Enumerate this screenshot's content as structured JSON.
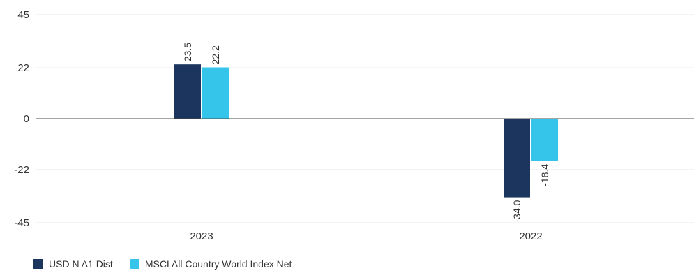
{
  "chart_data": {
    "type": "bar",
    "categories": [
      "2023",
      "2022"
    ],
    "series": [
      {
        "name": "USD N A1 Dist",
        "color": "#1c355e",
        "values": [
          23.5,
          -34.0
        ],
        "labels": [
          "23.5",
          "-34.0"
        ]
      },
      {
        "name": "MSCI All Country World Index Net",
        "color": "#35c4ea",
        "values": [
          22.2,
          -18.4
        ],
        "labels": [
          "22.2",
          "-18.4"
        ]
      }
    ],
    "yticks": [
      45,
      22,
      0,
      -22,
      -45
    ],
    "ylim": [
      -45,
      45
    ],
    "grid": true,
    "legend": "bottom-left",
    "title": "",
    "xlabel": "",
    "ylabel": ""
  }
}
